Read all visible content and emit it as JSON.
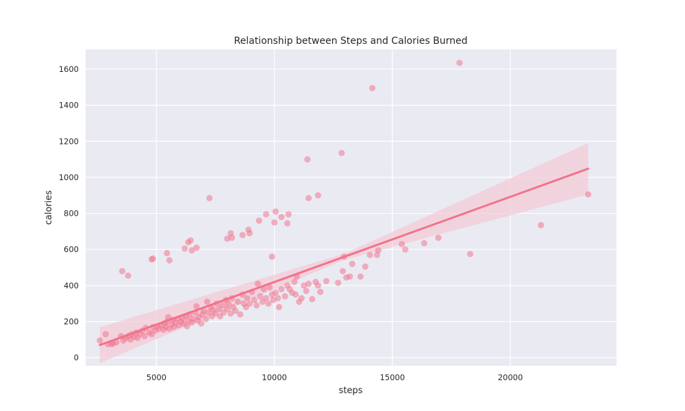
{
  "chart_data": {
    "type": "scatter",
    "title": "Relationship between Steps and Calories Burned",
    "xlabel": "steps",
    "ylabel": "calories",
    "xlim": [
      2000,
      24500
    ],
    "ylim": [
      -45,
      1710
    ],
    "xticks": [
      5000,
      10000,
      15000,
      20000
    ],
    "yticks": [
      0,
      200,
      400,
      600,
      800,
      1000,
      1200,
      1400,
      1600
    ],
    "grid": true,
    "colors": {
      "background": "#eaeaf2",
      "grid": "#ffffff",
      "points": "#f0778f",
      "regression": "#f27289",
      "confidence_band": "#f4c6d2"
    },
    "regression": {
      "x": [
        2600,
        23300
      ],
      "y": [
        70,
        1048
      ],
      "ci_upper_end": 1190,
      "ci_lower_end": 905
    },
    "points": [
      [
        2600,
        95
      ],
      [
        2850,
        130
      ],
      [
        2950,
        75
      ],
      [
        3100,
        75
      ],
      [
        3150,
        80
      ],
      [
        3300,
        85
      ],
      [
        3500,
        120
      ],
      [
        3600,
        95
      ],
      [
        3700,
        110
      ],
      [
        3800,
        120
      ],
      [
        3900,
        100
      ],
      [
        3950,
        130
      ],
      [
        4050,
        115
      ],
      [
        4150,
        140
      ],
      [
        4200,
        110
      ],
      [
        4300,
        130
      ],
      [
        4400,
        150
      ],
      [
        4500,
        120
      ],
      [
        4550,
        165
      ],
      [
        4700,
        140
      ],
      [
        4800,
        130
      ],
      [
        4850,
        170
      ],
      [
        4950,
        150
      ],
      [
        5050,
        175
      ],
      [
        5100,
        160
      ],
      [
        5200,
        180
      ],
      [
        5300,
        155
      ],
      [
        5350,
        190
      ],
      [
        5400,
        170
      ],
      [
        5450,
        200
      ],
      [
        5500,
        225
      ],
      [
        5550,
        160
      ],
      [
        5650,
        185
      ],
      [
        5700,
        210
      ],
      [
        5750,
        170
      ],
      [
        5800,
        195
      ],
      [
        5900,
        215
      ],
      [
        5950,
        180
      ],
      [
        6050,
        200
      ],
      [
        6100,
        220
      ],
      [
        6150,
        190
      ],
      [
        6250,
        230
      ],
      [
        6300,
        175
      ],
      [
        6350,
        205
      ],
      [
        6400,
        240
      ],
      [
        6500,
        195
      ],
      [
        6550,
        215
      ],
      [
        6650,
        250
      ],
      [
        6700,
        285
      ],
      [
        6750,
        205
      ],
      [
        6800,
        225
      ],
      [
        6900,
        190
      ],
      [
        6950,
        240
      ],
      [
        7000,
        260
      ],
      [
        7100,
        215
      ],
      [
        7150,
        310
      ],
      [
        7200,
        250
      ],
      [
        7300,
        280
      ],
      [
        7350,
        230
      ],
      [
        7400,
        265
      ],
      [
        7500,
        245
      ],
      [
        7550,
        300
      ],
      [
        7650,
        270
      ],
      [
        7700,
        230
      ],
      [
        7800,
        290
      ],
      [
        7850,
        250
      ],
      [
        7950,
        320
      ],
      [
        8000,
        270
      ],
      [
        8050,
        300
      ],
      [
        8150,
        245
      ],
      [
        8200,
        330
      ],
      [
        8250,
        280
      ],
      [
        8350,
        260
      ],
      [
        8450,
        310
      ],
      [
        8550,
        240
      ],
      [
        8650,
        350
      ],
      [
        8700,
        300
      ],
      [
        8800,
        280
      ],
      [
        8850,
        330
      ],
      [
        8950,
        300
      ],
      [
        9050,
        365
      ],
      [
        9150,
        320
      ],
      [
        9250,
        290
      ],
      [
        9300,
        410
      ],
      [
        9400,
        340
      ],
      [
        9500,
        310
      ],
      [
        9550,
        380
      ],
      [
        9650,
        330
      ],
      [
        9750,
        300
      ],
      [
        9800,
        390
      ],
      [
        9900,
        350
      ],
      [
        9950,
        320
      ],
      [
        10050,
        360
      ],
      [
        10150,
        330
      ],
      [
        10200,
        280
      ],
      [
        10300,
        380
      ],
      [
        10450,
        340
      ],
      [
        10550,
        400
      ],
      [
        10650,
        380
      ],
      [
        10750,
        360
      ],
      [
        10850,
        420
      ],
      [
        10900,
        350
      ],
      [
        10950,
        450
      ],
      [
        11050,
        310
      ],
      [
        11150,
        330
      ],
      [
        11250,
        400
      ],
      [
        11350,
        370
      ],
      [
        11450,
        410
      ],
      [
        11600,
        325
      ],
      [
        11750,
        420
      ],
      [
        11850,
        400
      ],
      [
        11950,
        365
      ],
      [
        12200,
        425
      ],
      [
        12700,
        415
      ],
      [
        12900,
        480
      ],
      [
        12950,
        560
      ],
      [
        13050,
        445
      ],
      [
        13200,
        450
      ],
      [
        13300,
        520
      ],
      [
        13650,
        450
      ],
      [
        13850,
        505
      ],
      [
        14050,
        570
      ],
      [
        14350,
        570
      ],
      [
        14400,
        595
      ],
      [
        15400,
        630
      ],
      [
        15550,
        600
      ],
      [
        16350,
        635
      ],
      [
        16950,
        665
      ],
      [
        18300,
        575
      ],
      [
        21300,
        735
      ],
      [
        23300,
        905
      ],
      [
        3550,
        480
      ],
      [
        3800,
        455
      ],
      [
        4800,
        545
      ],
      [
        4850,
        550
      ],
      [
        5450,
        580
      ],
      [
        5550,
        540
      ],
      [
        6200,
        605
      ],
      [
        6350,
        640
      ],
      [
        6450,
        650
      ],
      [
        6500,
        595
      ],
      [
        6700,
        610
      ],
      [
        7250,
        885
      ],
      [
        8000,
        660
      ],
      [
        8150,
        690
      ],
      [
        8200,
        665
      ],
      [
        8650,
        680
      ],
      [
        8900,
        710
      ],
      [
        8950,
        690
      ],
      [
        9350,
        760
      ],
      [
        9650,
        795
      ],
      [
        9900,
        560
      ],
      [
        10000,
        750
      ],
      [
        10050,
        810
      ],
      [
        10300,
        780
      ],
      [
        10550,
        745
      ],
      [
        10600,
        795
      ],
      [
        11400,
        1100
      ],
      [
        11450,
        885
      ],
      [
        11850,
        900
      ],
      [
        12850,
        1135
      ],
      [
        14150,
        1495
      ],
      [
        17850,
        1635
      ]
    ]
  }
}
